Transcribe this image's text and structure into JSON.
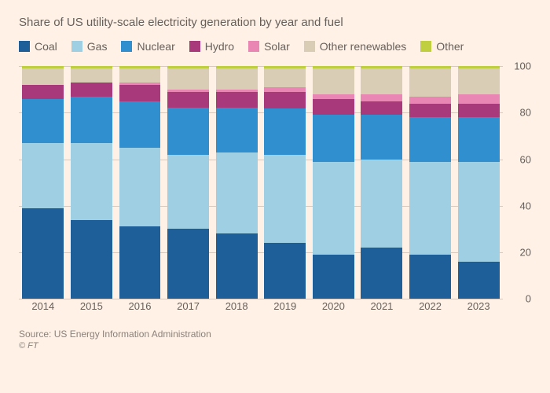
{
  "title": "Share of US utility-scale electricity generation by year and fuel",
  "source": "Source: US Energy Information Administration",
  "credit": "© FT",
  "background_color": "#fff1e5",
  "chart": {
    "type": "stacked-bar",
    "ylim": [
      0,
      100
    ],
    "ytick_step": 20,
    "grid_color": "#d7c9bd",
    "text_color": "#66605c",
    "label_fontsize": 13,
    "title_fontsize": 15,
    "bar_width_pct": 86,
    "categories": [
      "2014",
      "2015",
      "2016",
      "2017",
      "2018",
      "2019",
      "2020",
      "2021",
      "2022",
      "2023"
    ],
    "series": [
      {
        "name": "Coal",
        "color": "#1f5f99"
      },
      {
        "name": "Gas",
        "color": "#9ecfe3"
      },
      {
        "name": "Nuclear",
        "color": "#2f8fcf"
      },
      {
        "name": "Hydro",
        "color": "#a8397a"
      },
      {
        "name": "Solar",
        "color": "#e986b4"
      },
      {
        "name": "Other renewables",
        "color": "#d9cdb6"
      },
      {
        "name": "Other",
        "color": "#bfcf3f"
      }
    ],
    "values": [
      [
        39,
        34,
        31,
        30,
        28,
        24,
        19,
        22,
        19,
        16
      ],
      [
        28,
        33,
        34,
        32,
        35,
        38,
        40,
        38,
        40,
        43
      ],
      [
        19,
        20,
        20,
        20,
        19,
        20,
        20,
        19,
        19,
        19
      ],
      [
        6,
        6,
        7,
        7,
        7,
        7,
        7,
        6,
        6,
        6
      ],
      [
        0,
        0,
        1,
        1,
        1,
        2,
        2,
        3,
        3,
        4
      ],
      [
        7,
        6,
        6,
        9,
        9,
        8,
        11,
        11,
        12,
        11
      ],
      [
        1,
        1,
        1,
        1,
        1,
        1,
        1,
        1,
        1,
        1
      ]
    ]
  }
}
